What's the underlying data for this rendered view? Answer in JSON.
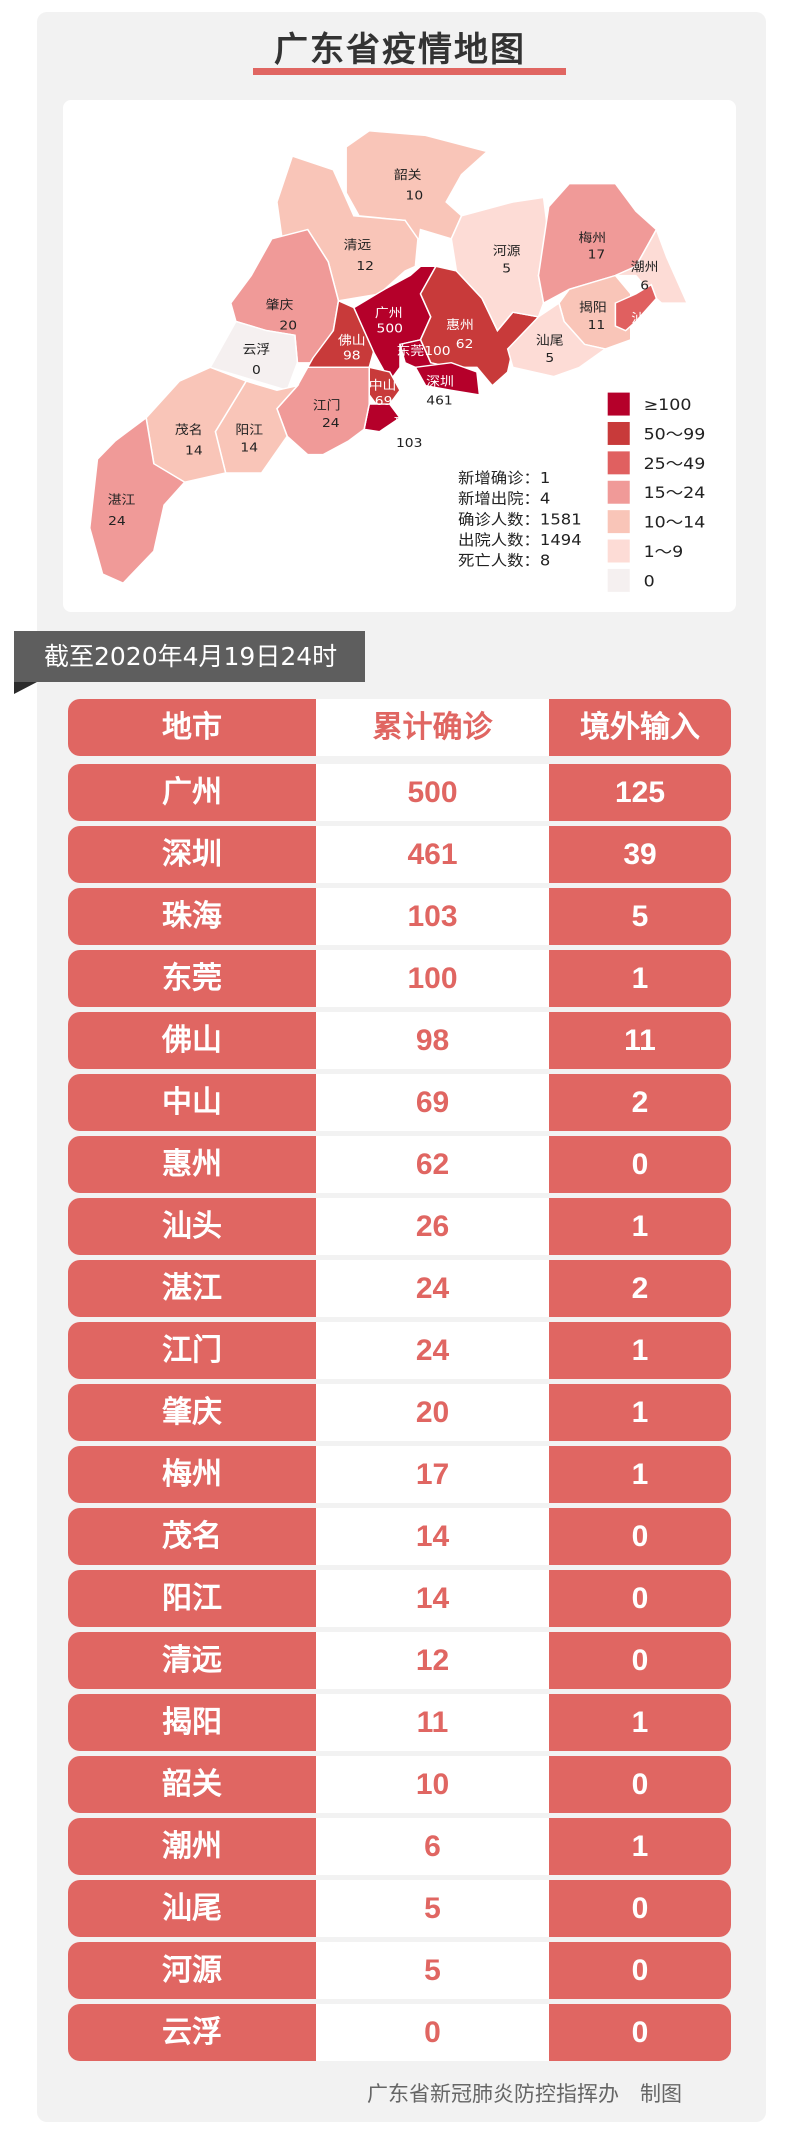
{
  "title": "广东省疫情地图",
  "colors": {
    "accent": "#e06662",
    "banner": "#5e5e5e",
    "legend": [
      "#b5002a",
      "#c83a3a",
      "#e06060",
      "#f09a98",
      "#f9c5b8",
      "#fddcd6",
      "#f5f0f0"
    ]
  },
  "map": {
    "regions": [
      {
        "name": "韶关",
        "value": "10"
      },
      {
        "name": "清远",
        "value": "12"
      },
      {
        "name": "肇庆",
        "value": "20"
      },
      {
        "name": "云浮",
        "value": "0"
      },
      {
        "name": "佛山",
        "value": "98"
      },
      {
        "name": "广州",
        "value": "500"
      },
      {
        "name": "惠州",
        "value": "62"
      },
      {
        "name": "东莞",
        "value": "100"
      },
      {
        "name": "深圳",
        "value": "461"
      },
      {
        "name": "中山",
        "value": "69"
      },
      {
        "name": "珠海",
        "value": "103"
      },
      {
        "name": "江门",
        "value": "24"
      },
      {
        "name": "阳江",
        "value": "14"
      },
      {
        "name": "茂名",
        "value": "14"
      },
      {
        "name": "湛江",
        "value": "24"
      },
      {
        "name": "河源",
        "value": "5"
      },
      {
        "name": "梅州",
        "value": "17"
      },
      {
        "name": "潮州",
        "value": "6"
      },
      {
        "name": "揭阳",
        "value": "11"
      },
      {
        "name": "汕头",
        "value": "26"
      },
      {
        "name": "汕尾",
        "value": "5"
      }
    ],
    "legend": [
      "≥100",
      "50～99",
      "25～49",
      "15～24",
      "10～14",
      "1～9",
      "0"
    ],
    "stats": [
      "新增确诊：1",
      "新增出院：4",
      "确诊人数：1581",
      "出院人数：1494",
      "死亡人数：8"
    ]
  },
  "banner": "截至2020年4月19日24时",
  "table": {
    "headers": [
      "地市",
      "累计确诊",
      "境外输入"
    ],
    "rows": [
      [
        "广州",
        "500",
        "125"
      ],
      [
        "深圳",
        "461",
        "39"
      ],
      [
        "珠海",
        "103",
        "5"
      ],
      [
        "东莞",
        "100",
        "1"
      ],
      [
        "佛山",
        "98",
        "11"
      ],
      [
        "中山",
        "69",
        "2"
      ],
      [
        "惠州",
        "62",
        "0"
      ],
      [
        "汕头",
        "26",
        "1"
      ],
      [
        "湛江",
        "24",
        "2"
      ],
      [
        "江门",
        "24",
        "1"
      ],
      [
        "肇庆",
        "20",
        "1"
      ],
      [
        "梅州",
        "17",
        "1"
      ],
      [
        "茂名",
        "14",
        "0"
      ],
      [
        "阳江",
        "14",
        "0"
      ],
      [
        "清远",
        "12",
        "0"
      ],
      [
        "揭阳",
        "11",
        "1"
      ],
      [
        "韶关",
        "10",
        "0"
      ],
      [
        "潮州",
        "6",
        "1"
      ],
      [
        "汕尾",
        "5",
        "0"
      ],
      [
        "河源",
        "5",
        "0"
      ],
      [
        "云浮",
        "0",
        "0"
      ]
    ]
  },
  "footer": "广东省新冠肺炎防控指挥办　制图"
}
